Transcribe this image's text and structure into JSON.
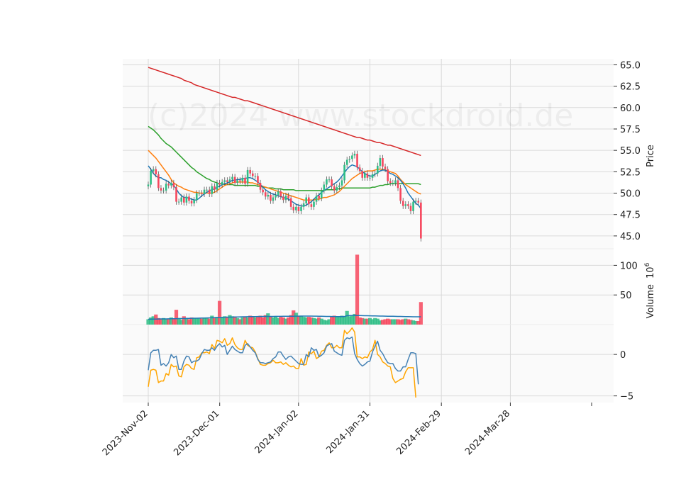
{
  "chart_data": {
    "type": "candlestick",
    "watermark": "(c)2024 www.stockdroid.de",
    "x_tick_labels": [
      "2023-Nov-02",
      "2023-Dec-01",
      "2024-Jan-02",
      "2024-Jan-31",
      "2024-Feb-29",
      "2024-Mar-28"
    ],
    "x_tick_dates": [
      "2023-11-02",
      "2023-12-01",
      "2024-01-02",
      "2024-01-31",
      "2024-02-29",
      "2024-03-28"
    ],
    "colors": {
      "up": "#2ebd85",
      "down": "#f6465d",
      "ma_fast": "#1f77b4",
      "ma_mid": "#ff7f0e",
      "ma_slow": "#2ca02c",
      "ma_long": "#d62728",
      "osc_a": "#4682b4",
      "osc_b": "#ffa500"
    },
    "price_panel": {
      "ylabel": "Price",
      "ylim": [
        43.5,
        65.7
      ],
      "yticks": [
        45.0,
        47.5,
        50.0,
        52.5,
        55.0,
        57.5,
        60.0,
        62.5,
        65.0
      ],
      "ytick_labels": [
        "45.0",
        "47.5",
        "50.0",
        "52.5",
        "55.0",
        "57.5",
        "60.0",
        "62.5",
        "65.0"
      ],
      "close": [
        51.0,
        52.6,
        52.8,
        52.2,
        50.6,
        50.3,
        50.3,
        51.1,
        50.9,
        51.2,
        50.7,
        49.0,
        49.0,
        49.5,
        48.9,
        49.6,
        49.1,
        48.8,
        49.2,
        50.0,
        50.0,
        49.9,
        50.4,
        50.4,
        49.9,
        50.8,
        50.4,
        51.2,
        51.0,
        51.3,
        51.5,
        51.3,
        51.6,
        51.9,
        51.2,
        51.5,
        51.4,
        51.8,
        51.1,
        52.7,
        52.3,
        52.0,
        52.0,
        51.2,
        50.4,
        50.1,
        49.6,
        49.8,
        49.1,
        49.5,
        49.8,
        50.2,
        49.6,
        49.2,
        49.7,
        49.4,
        48.4,
        48.0,
        48.4,
        47.9,
        48.4,
        48.8,
        49.5,
        48.7,
        48.4,
        49.0,
        49.7,
        49.4,
        50.3,
        51.0,
        51.6,
        51.6,
        50.8,
        50.3,
        50.7,
        50.9,
        51.5,
        53.3,
        53.9,
        54.0,
        54.4,
        54.6,
        53.0,
        52.6,
        51.8,
        52.3,
        51.8,
        51.8,
        52.2,
        52.3,
        53.2,
        54.1,
        53.1,
        52.8,
        51.4,
        51.2,
        51.2,
        51.5,
        50.6,
        49.1,
        48.5,
        48.7,
        48.5,
        47.9,
        49.0,
        49.1,
        48.9,
        44.7
      ],
      "ma_fast": [
        53.2,
        52.8,
        52.3,
        52.0,
        51.8,
        51.8,
        51.6,
        51.5,
        51.3,
        51.1,
        50.9,
        50.5,
        50.0,
        49.7,
        49.5,
        49.5,
        49.4,
        49.3,
        49.2,
        49.2,
        49.4,
        49.7,
        49.9,
        50.1,
        50.3,
        50.4,
        50.5,
        50.7,
        50.8,
        51.0,
        51.1,
        51.2,
        51.3,
        51.5,
        51.5,
        51.6,
        51.6,
        51.7,
        51.7,
        51.8,
        51.8,
        51.7,
        51.5,
        51.3,
        51.0,
        50.7,
        50.4,
        50.2,
        50.0,
        49.9,
        49.8,
        49.7,
        49.6,
        49.5,
        49.4,
        49.3,
        49.1,
        48.9,
        48.7,
        48.6,
        48.5,
        48.5,
        48.6,
        48.8,
        49.0,
        49.3,
        49.6,
        49.8,
        50.1,
        50.3,
        50.5,
        50.7,
        50.9,
        51.1,
        51.3,
        51.6,
        52.0,
        52.4,
        52.8,
        53.1,
        53.3,
        53.2,
        53.1,
        52.8,
        52.5,
        52.3,
        52.1,
        52.0,
        52.0,
        52.2,
        52.4,
        52.6,
        52.7,
        52.7,
        52.5,
        52.3,
        52.2,
        52.0,
        51.8,
        51.5,
        51.1,
        50.6,
        50.0,
        49.6,
        49.2,
        48.8,
        48.6,
        48.2
      ],
      "ma_mid": [
        55.0,
        54.7,
        54.4,
        54.1,
        53.7,
        53.3,
        52.9,
        52.5,
        52.1,
        51.6,
        51.2,
        51.0,
        50.8,
        50.7,
        50.5,
        50.4,
        50.3,
        50.2,
        50.1,
        50.1,
        50.0,
        50.0,
        50.0,
        50.0,
        50.0,
        50.0,
        50.1,
        50.3,
        50.5,
        50.7,
        50.9,
        51.0,
        51.1,
        51.2,
        51.3,
        51.3,
        51.3,
        51.3,
        51.3,
        51.3,
        51.2,
        51.2,
        51.1,
        51.0,
        50.9,
        50.8,
        50.7,
        50.6,
        50.5,
        50.4,
        50.3,
        50.2,
        50.1,
        50.0,
        49.9,
        49.8,
        49.7,
        49.6,
        49.5,
        49.4,
        49.3,
        49.2,
        49.2,
        49.2,
        49.2,
        49.2,
        49.3,
        49.3,
        49.4,
        49.5,
        49.5,
        49.6,
        49.7,
        49.8,
        50.0,
        50.2,
        50.5,
        50.8,
        51.1,
        51.4,
        51.7,
        51.9,
        52.1,
        52.3,
        52.4,
        52.5,
        52.6,
        52.6,
        52.6,
        52.7,
        52.8,
        52.8,
        52.8,
        52.7,
        52.6,
        52.5,
        52.4,
        52.3,
        52.0,
        51.6,
        51.3,
        51.0,
        50.8,
        50.6,
        50.4,
        50.2,
        50.0,
        49.9
      ],
      "ma_slow": [
        57.8,
        57.6,
        57.4,
        57.1,
        56.8,
        56.4,
        56.1,
        55.8,
        55.6,
        55.4,
        55.1,
        54.8,
        54.5,
        54.2,
        53.9,
        53.6,
        53.3,
        53.0,
        52.8,
        52.5,
        52.3,
        52.1,
        51.9,
        51.7,
        51.6,
        51.4,
        51.3,
        51.2,
        51.1,
        51.1,
        51.0,
        51.0,
        51.0,
        51.0,
        50.9,
        50.9,
        50.9,
        50.9,
        50.9,
        50.9,
        50.9,
        50.9,
        50.9,
        50.8,
        50.8,
        50.7,
        50.7,
        50.6,
        50.6,
        50.6,
        50.5,
        50.5,
        50.5,
        50.4,
        50.4,
        50.4,
        50.4,
        50.4,
        50.3,
        50.3,
        50.3,
        50.3,
        50.3,
        50.3,
        50.3,
        50.3,
        50.3,
        50.3,
        50.3,
        50.3,
        50.4,
        50.4,
        50.4,
        50.4,
        50.5,
        50.5,
        50.6,
        50.6,
        50.6,
        50.6,
        50.6,
        50.6,
        50.6,
        50.6,
        50.6,
        50.6,
        50.6,
        50.6,
        50.7,
        50.7,
        50.8,
        50.9,
        50.9,
        51.0,
        51.0,
        51.1,
        51.1,
        51.1,
        51.1,
        51.1,
        51.1,
        51.1,
        51.1,
        51.1,
        51.1,
        51.1,
        51.1,
        51.0
      ],
      "ma_long": [
        64.7,
        64.6,
        64.5,
        64.4,
        64.3,
        64.2,
        64.1,
        64.0,
        63.9,
        63.8,
        63.7,
        63.6,
        63.5,
        63.4,
        63.2,
        63.1,
        63.0,
        62.9,
        62.7,
        62.6,
        62.5,
        62.4,
        62.3,
        62.2,
        62.1,
        62.0,
        61.9,
        61.8,
        61.7,
        61.6,
        61.5,
        61.4,
        61.3,
        61.2,
        61.2,
        61.1,
        61.0,
        60.9,
        60.8,
        60.8,
        60.7,
        60.6,
        60.5,
        60.4,
        60.3,
        60.2,
        60.1,
        60.0,
        59.9,
        59.8,
        59.7,
        59.6,
        59.5,
        59.4,
        59.3,
        59.2,
        59.1,
        59.0,
        58.9,
        58.8,
        58.7,
        58.6,
        58.5,
        58.4,
        58.3,
        58.2,
        58.1,
        58.0,
        57.9,
        57.8,
        57.7,
        57.6,
        57.5,
        57.4,
        57.3,
        57.2,
        57.1,
        57.0,
        56.9,
        56.8,
        56.7,
        56.6,
        56.5,
        56.5,
        56.4,
        56.3,
        56.2,
        56.2,
        56.1,
        56.0,
        55.9,
        55.9,
        55.8,
        55.7,
        55.6,
        55.6,
        55.5,
        55.4,
        55.3,
        55.2,
        55.1,
        55.0,
        54.9,
        54.8,
        54.7,
        54.6,
        54.5,
        54.4
      ]
    },
    "volume_panel": {
      "ylabel": "Volume  10^6",
      "ylabel_main": "Volume",
      "ylabel_exp": "10",
      "ylabel_sup": "6",
      "ylim": [
        0,
        128
      ],
      "yticks": [
        50,
        100
      ],
      "ytick_labels": [
        "50",
        "100"
      ],
      "values": [
        9,
        12,
        14,
        17,
        11,
        10,
        11,
        10,
        9,
        12,
        10,
        25,
        11,
        8,
        14,
        10,
        9,
        12,
        11,
        11,
        11,
        10,
        12,
        11,
        10,
        15,
        11,
        13,
        40,
        12,
        14,
        13,
        16,
        14,
        13,
        11,
        9,
        12,
        13,
        12,
        15,
        14,
        12,
        13,
        15,
        12,
        16,
        19,
        14,
        12,
        14,
        11,
        13,
        12,
        10,
        12,
        16,
        24,
        20,
        15,
        15,
        13,
        12,
        13,
        12,
        11,
        10,
        12,
        10,
        8,
        7,
        9,
        14,
        15,
        14,
        13,
        15,
        14,
        23,
        14,
        15,
        18,
        118,
        12,
        11,
        10,
        10,
        11,
        9,
        11,
        10,
        7,
        8,
        9,
        10,
        9,
        9,
        9,
        9,
        8,
        9,
        10,
        9,
        8,
        7,
        6,
        6,
        38
      ],
      "avg": [
        9,
        9.1,
        9.2,
        9.3,
        9.4,
        9.5,
        9.6,
        9.6,
        9.7,
        9.8,
        9.9,
        10,
        10.1,
        10.2,
        10.3,
        10.4,
        10.5,
        10.6,
        10.7,
        10.8,
        10.9,
        11,
        11.1,
        11.2,
        11.3,
        11.5,
        11.6,
        11.8,
        12,
        12.2,
        12.4,
        12.5,
        12.6,
        12.7,
        12.8,
        12.9,
        13,
        13.1,
        13.2,
        13.3,
        13.4,
        13.5,
        13.5,
        13.6,
        13.6,
        13.7,
        13.7,
        13.8,
        13.8,
        13.8,
        13.9,
        13.9,
        13.9,
        14,
        14,
        14,
        14.1,
        14.1,
        14.2,
        14.2,
        14.3,
        14.3,
        14.3,
        14.3,
        14.3,
        14.2,
        14.2,
        14.1,
        14,
        13.9,
        13.8,
        13.7,
        13.6,
        13.6,
        13.5,
        13.5,
        13.5,
        13.6,
        15,
        15.2,
        15.3,
        15.3,
        15.3,
        15.2,
        15.1,
        15,
        14.9,
        14.8,
        14.7,
        14.6,
        14.5,
        14.4,
        14.3,
        14.2,
        14.1,
        14,
        14,
        13.9,
        13.8,
        13.7,
        13.6,
        13.5,
        13.4,
        13.3,
        13.2,
        13.1,
        13.1,
        13.2
      ]
    },
    "oscillator_panel": {
      "ylim": [
        -5.8,
        3.6
      ],
      "yticks": [
        -5,
        0
      ],
      "ytick_labels": [
        "−5",
        "0"
      ],
      "line_a": [
        -1.9,
        0.2,
        0.5,
        0.5,
        0.6,
        -1.3,
        -1.1,
        -1.4,
        -1.0,
        0.0,
        -0.4,
        -0.2,
        -1.8,
        -1.8,
        -0.8,
        -0.2,
        -0.3,
        -1.0,
        -0.8,
        -0.8,
        -0.6,
        0.1,
        0.6,
        0.5,
        0.5,
        0.8,
        0.5,
        1.0,
        1.3,
        0.9,
        1.1,
        0.0,
        0.5,
        1.0,
        0.6,
        0.4,
        0.2,
        0.2,
        1.1,
        1.3,
        0.9,
        0.5,
        0.2,
        -0.6,
        -1.0,
        -1.0,
        -1.1,
        -1.0,
        -0.9,
        -0.5,
        -0.3,
        0.3,
        0.3,
        -0.2,
        -0.6,
        -0.3,
        -0.2,
        -0.5,
        -0.8,
        -1.1,
        -1.2,
        -1.2,
        0.0,
        -0.3,
        0.8,
        0.5,
        0.6,
        -0.3,
        -0.1,
        0.2,
        1.0,
        1.2,
        1.3,
        0.4,
        0.2,
        0.0,
        -0.1,
        1.7,
        2.0,
        1.9,
        2.1,
        0.1,
        -0.6,
        -1.1,
        -1.4,
        -1.2,
        -0.9,
        -0.8,
        0.3,
        1.0,
        1.6,
        0.5,
        0.1,
        -0.5,
        -1.0,
        -1.1,
        -1.1,
        -1.7,
        -2.0,
        -2.0,
        -1.5,
        -1.5,
        -0.6,
        0.2,
        0.2,
        0.1,
        -3.6
      ],
      "line_b": [
        -3.9,
        -1.9,
        -1.8,
        -1.9,
        -3.4,
        -3.2,
        -3.2,
        -2.3,
        -2.5,
        -1.2,
        -1.5,
        -1.4,
        -2.6,
        -2.7,
        -1.5,
        -1.2,
        -1.3,
        -1.7,
        -1.8,
        -0.4,
        -0.3,
        0.2,
        0.2,
        0.3,
        0.1,
        1.2,
        0.7,
        1.7,
        1.6,
        1.4,
        1.9,
        1.1,
        1.3,
        2.0,
        1.2,
        0.8,
        0.6,
        0.6,
        1.7,
        1.1,
        0.9,
        0.8,
        0.3,
        -0.5,
        -1.2,
        -1.3,
        -1.3,
        -1.1,
        -1.0,
        -0.7,
        -1.0,
        -1.0,
        -0.9,
        -1.2,
        -1.0,
        -1.3,
        -1.5,
        -1.4,
        -1.7,
        -1.7,
        -0.5,
        -1.3,
        -1.2,
        0.3,
        0.1,
        0.4,
        -0.5,
        -0.3,
        0.4,
        0.5,
        1.1,
        1.4,
        0.8,
        0.8,
        1.1,
        0.8,
        0.8,
        2.9,
        2.5,
        2.8,
        3.2,
        2.7,
        -0.3,
        -0.3,
        -0.5,
        -0.3,
        -0.4,
        0.3,
        0.6,
        1.7,
        0.0,
        -0.3,
        -0.9,
        -1.1,
        -1.4,
        -1.5,
        -2.9,
        -3.4,
        -3.2,
        -3.0,
        -2.9,
        -2.1,
        -1.6,
        -1.6,
        -1.6,
        -5.2
      ]
    }
  }
}
